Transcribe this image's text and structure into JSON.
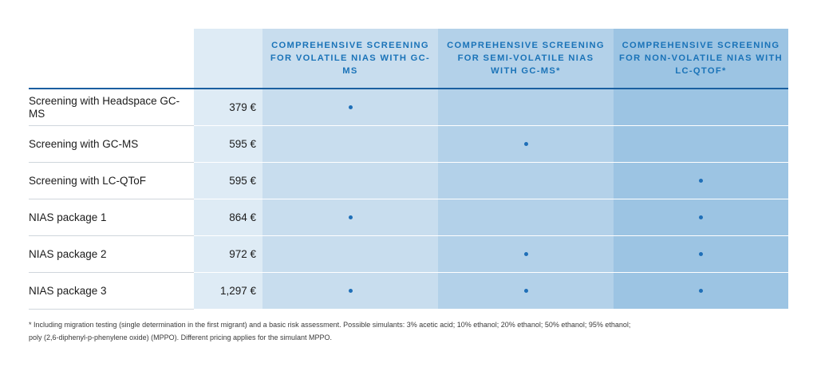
{
  "columns": [
    {
      "header": "COMPREHENSIVE SCREENING FOR VOLATILE NIAS WITH GC-MS"
    },
    {
      "header": "COMPREHENSIVE SCREENING FOR SEMI-VOLATILE NIAS WITH GC-MS*"
    },
    {
      "header": "COMPREHENSIVE SCREENING FOR NON-VOLATILE NIAS WITH LC-QTOF*"
    }
  ],
  "rows": [
    {
      "name": "Screening with Headspace GC-MS",
      "price": "379 €",
      "marks": [
        true,
        false,
        false
      ]
    },
    {
      "name": "Screening with GC-MS",
      "price": "595 €",
      "marks": [
        false,
        true,
        false
      ]
    },
    {
      "name": "Screening with LC-QToF",
      "price": "595 €",
      "marks": [
        false,
        false,
        true
      ]
    },
    {
      "name": "NIAS package 1",
      "price": "864 €",
      "marks": [
        true,
        false,
        true
      ]
    },
    {
      "name": "NIAS package 2",
      "price": "972 €",
      "marks": [
        false,
        true,
        true
      ]
    },
    {
      "name": "NIAS package 3",
      "price": "1,297 €",
      "marks": [
        true,
        true,
        true
      ]
    }
  ],
  "footnote": {
    "line1": "* Including migration testing (single determination in the first migrant) and a basic risk assessment. Possible simulants: 3% acetic acid; 10% ethanol; 20% ethanol; 50% ethanol; 95% ethanol;",
    "line2": "poly (2,6-diphenyl-p-phenylene oxide) (MPPO). Different pricing applies for the simulant MPPO."
  },
  "colors": {
    "accent": "#1a73b8",
    "rule": "#1a5fa0",
    "price_bg": "#deebf5",
    "col1_bg": "#c8ddee",
    "col2_bg": "#b3d1e9",
    "col3_bg": "#9cc4e3",
    "dot": "#1f6fb8"
  }
}
